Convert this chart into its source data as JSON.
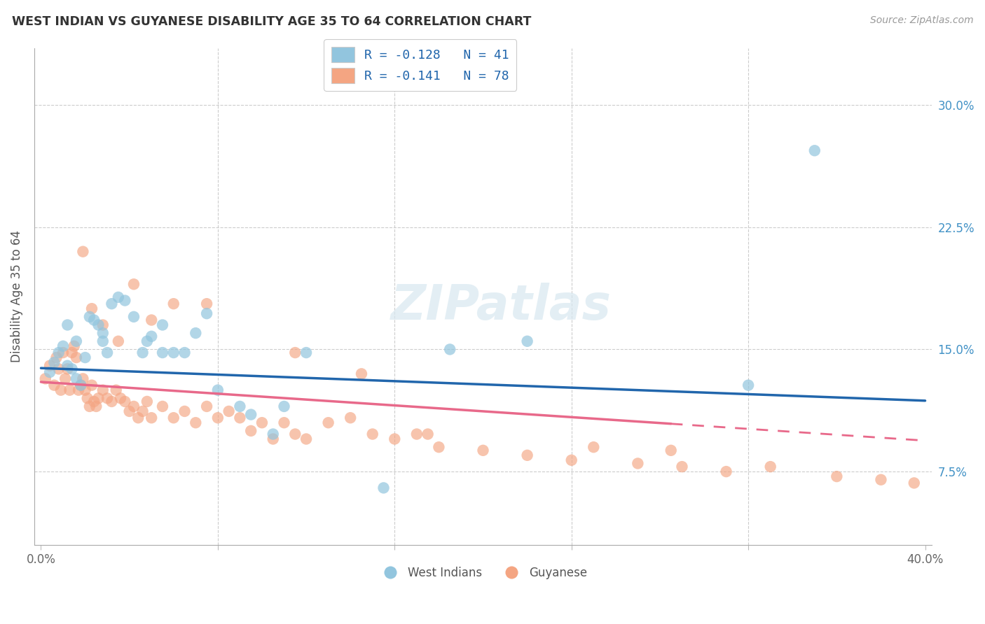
{
  "title": "WEST INDIAN VS GUYANESE DISABILITY AGE 35 TO 64 CORRELATION CHART",
  "source": "Source: ZipAtlas.com",
  "ylabel": "Disability Age 35 to 64",
  "ytick_labels": [
    "7.5%",
    "15.0%",
    "22.5%",
    "30.0%"
  ],
  "ytick_values": [
    0.075,
    0.15,
    0.225,
    0.3
  ],
  "xlim": [
    -0.003,
    0.403
  ],
  "ylim": [
    0.03,
    0.335
  ],
  "legend_label1": "R = -0.128   N = 41",
  "legend_label2": "R = -0.141   N = 78",
  "legend_label1_short": "West Indians",
  "legend_label2_short": "Guyanese",
  "color_blue": "#92c5de",
  "color_pink": "#f4a582",
  "color_blue_line": "#2166ac",
  "color_pink_line": "#e8698a",
  "background_color": "#ffffff",
  "grid_color": "#cccccc",
  "wi_line_x0": 0.0,
  "wi_line_y0": 0.1385,
  "wi_line_x1": 0.4,
  "wi_line_y1": 0.1185,
  "gu_line_x0": 0.0,
  "gu_line_y0": 0.13,
  "gu_line_x1": 0.4,
  "gu_line_y1": 0.094,
  "gu_line_solid_end": 0.285,
  "west_indian_x": [
    0.004,
    0.006,
    0.008,
    0.01,
    0.012,
    0.014,
    0.016,
    0.018,
    0.02,
    0.022,
    0.024,
    0.026,
    0.028,
    0.03,
    0.032,
    0.035,
    0.038,
    0.042,
    0.046,
    0.05,
    0.055,
    0.06,
    0.065,
    0.07,
    0.075,
    0.08,
    0.09,
    0.095,
    0.105,
    0.11,
    0.12,
    0.155,
    0.185,
    0.22,
    0.32,
    0.35,
    0.048,
    0.055,
    0.012,
    0.016,
    0.028
  ],
  "west_indian_y": [
    0.136,
    0.142,
    0.148,
    0.152,
    0.14,
    0.138,
    0.132,
    0.128,
    0.145,
    0.17,
    0.168,
    0.165,
    0.155,
    0.148,
    0.178,
    0.182,
    0.18,
    0.17,
    0.148,
    0.158,
    0.165,
    0.148,
    0.148,
    0.16,
    0.172,
    0.125,
    0.115,
    0.11,
    0.098,
    0.115,
    0.148,
    0.065,
    0.15,
    0.155,
    0.128,
    0.272,
    0.155,
    0.148,
    0.165,
    0.155,
    0.16
  ],
  "guyanese_x": [
    0.002,
    0.004,
    0.006,
    0.007,
    0.008,
    0.009,
    0.01,
    0.011,
    0.012,
    0.013,
    0.014,
    0.015,
    0.016,
    0.017,
    0.018,
    0.019,
    0.02,
    0.021,
    0.022,
    0.023,
    0.024,
    0.025,
    0.026,
    0.028,
    0.03,
    0.032,
    0.034,
    0.036,
    0.038,
    0.04,
    0.042,
    0.044,
    0.046,
    0.048,
    0.05,
    0.055,
    0.06,
    0.065,
    0.07,
    0.075,
    0.08,
    0.085,
    0.09,
    0.095,
    0.1,
    0.105,
    0.11,
    0.115,
    0.12,
    0.13,
    0.14,
    0.15,
    0.16,
    0.17,
    0.18,
    0.2,
    0.22,
    0.24,
    0.27,
    0.29,
    0.31,
    0.33,
    0.36,
    0.38,
    0.395,
    0.019,
    0.023,
    0.028,
    0.035,
    0.042,
    0.05,
    0.06,
    0.075,
    0.115,
    0.145,
    0.175,
    0.25,
    0.285
  ],
  "guyanese_y": [
    0.132,
    0.14,
    0.128,
    0.145,
    0.138,
    0.125,
    0.148,
    0.132,
    0.138,
    0.125,
    0.148,
    0.152,
    0.145,
    0.125,
    0.128,
    0.132,
    0.125,
    0.12,
    0.115,
    0.128,
    0.118,
    0.115,
    0.12,
    0.125,
    0.12,
    0.118,
    0.125,
    0.12,
    0.118,
    0.112,
    0.115,
    0.108,
    0.112,
    0.118,
    0.108,
    0.115,
    0.108,
    0.112,
    0.105,
    0.115,
    0.108,
    0.112,
    0.108,
    0.1,
    0.105,
    0.095,
    0.105,
    0.098,
    0.095,
    0.105,
    0.108,
    0.098,
    0.095,
    0.098,
    0.09,
    0.088,
    0.085,
    0.082,
    0.08,
    0.078,
    0.075,
    0.078,
    0.072,
    0.07,
    0.068,
    0.21,
    0.175,
    0.165,
    0.155,
    0.19,
    0.168,
    0.178,
    0.178,
    0.148,
    0.135,
    0.098,
    0.09,
    0.088
  ]
}
